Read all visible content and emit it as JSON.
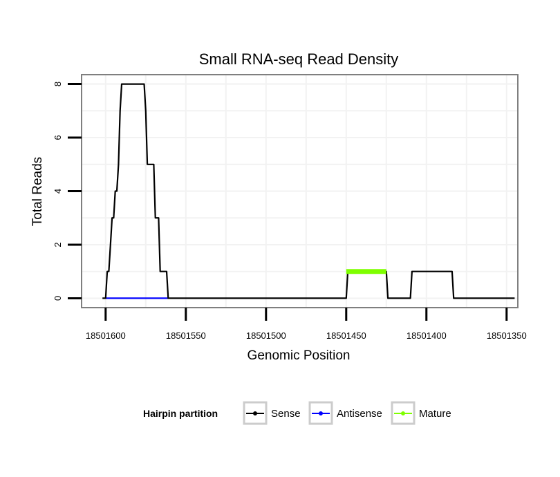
{
  "chart_data": {
    "type": "line",
    "title": "Small RNA-seq Read Density",
    "xlabel": "Genomic Position",
    "ylabel": "Total Reads",
    "x_reversed": true,
    "xlim": [
      18501615,
      18501343
    ],
    "ylim": [
      -0.35,
      8.35
    ],
    "x_ticks": [
      18501600,
      18501550,
      18501500,
      18501450,
      18501400,
      18501350
    ],
    "x_tick_labels": [
      "18501600",
      "18501550",
      "18501500",
      "18501450",
      "18501400",
      "18501350"
    ],
    "y_ticks": [
      0,
      2,
      4,
      6,
      8
    ],
    "y_tick_labels": [
      "0",
      "2",
      "4",
      "6",
      "8"
    ],
    "grid": true,
    "legend": {
      "title": "Hairpin partition",
      "position": "bottom",
      "entries": [
        "Sense",
        "Antisense",
        "Mature"
      ]
    },
    "series": [
      {
        "name": "Sense",
        "color": "#000000",
        "x": [
          18501602,
          18501600,
          18501599,
          18501598,
          18501597,
          18501596,
          18501595,
          18501594,
          18501593,
          18501592,
          18501591,
          18501590,
          18501589,
          18501588,
          18501587,
          18501576,
          18501575,
          18501574,
          18501573,
          18501570,
          18501569,
          18501567,
          18501566,
          18501565,
          18501564,
          18501562,
          18501561,
          18501450,
          18501449,
          18501425,
          18501424,
          18501410,
          18501409,
          18501384,
          18501383,
          18501345
        ],
        "y": [
          0,
          0,
          1,
          1,
          2,
          3,
          3,
          4,
          4,
          5,
          7,
          8,
          8,
          8,
          8,
          8,
          7,
          5,
          5,
          5,
          3,
          3,
          1,
          1,
          1,
          1,
          0,
          0,
          1,
          1,
          0,
          0,
          1,
          1,
          0,
          0
        ]
      },
      {
        "name": "Antisense",
        "color": "#0000ff",
        "x": [
          18501600,
          18501561
        ],
        "y": [
          0,
          0
        ]
      },
      {
        "name": "Mature",
        "color": "#7fff00",
        "x": [
          18501450,
          18501425
        ],
        "y": [
          1,
          1
        ]
      }
    ]
  }
}
